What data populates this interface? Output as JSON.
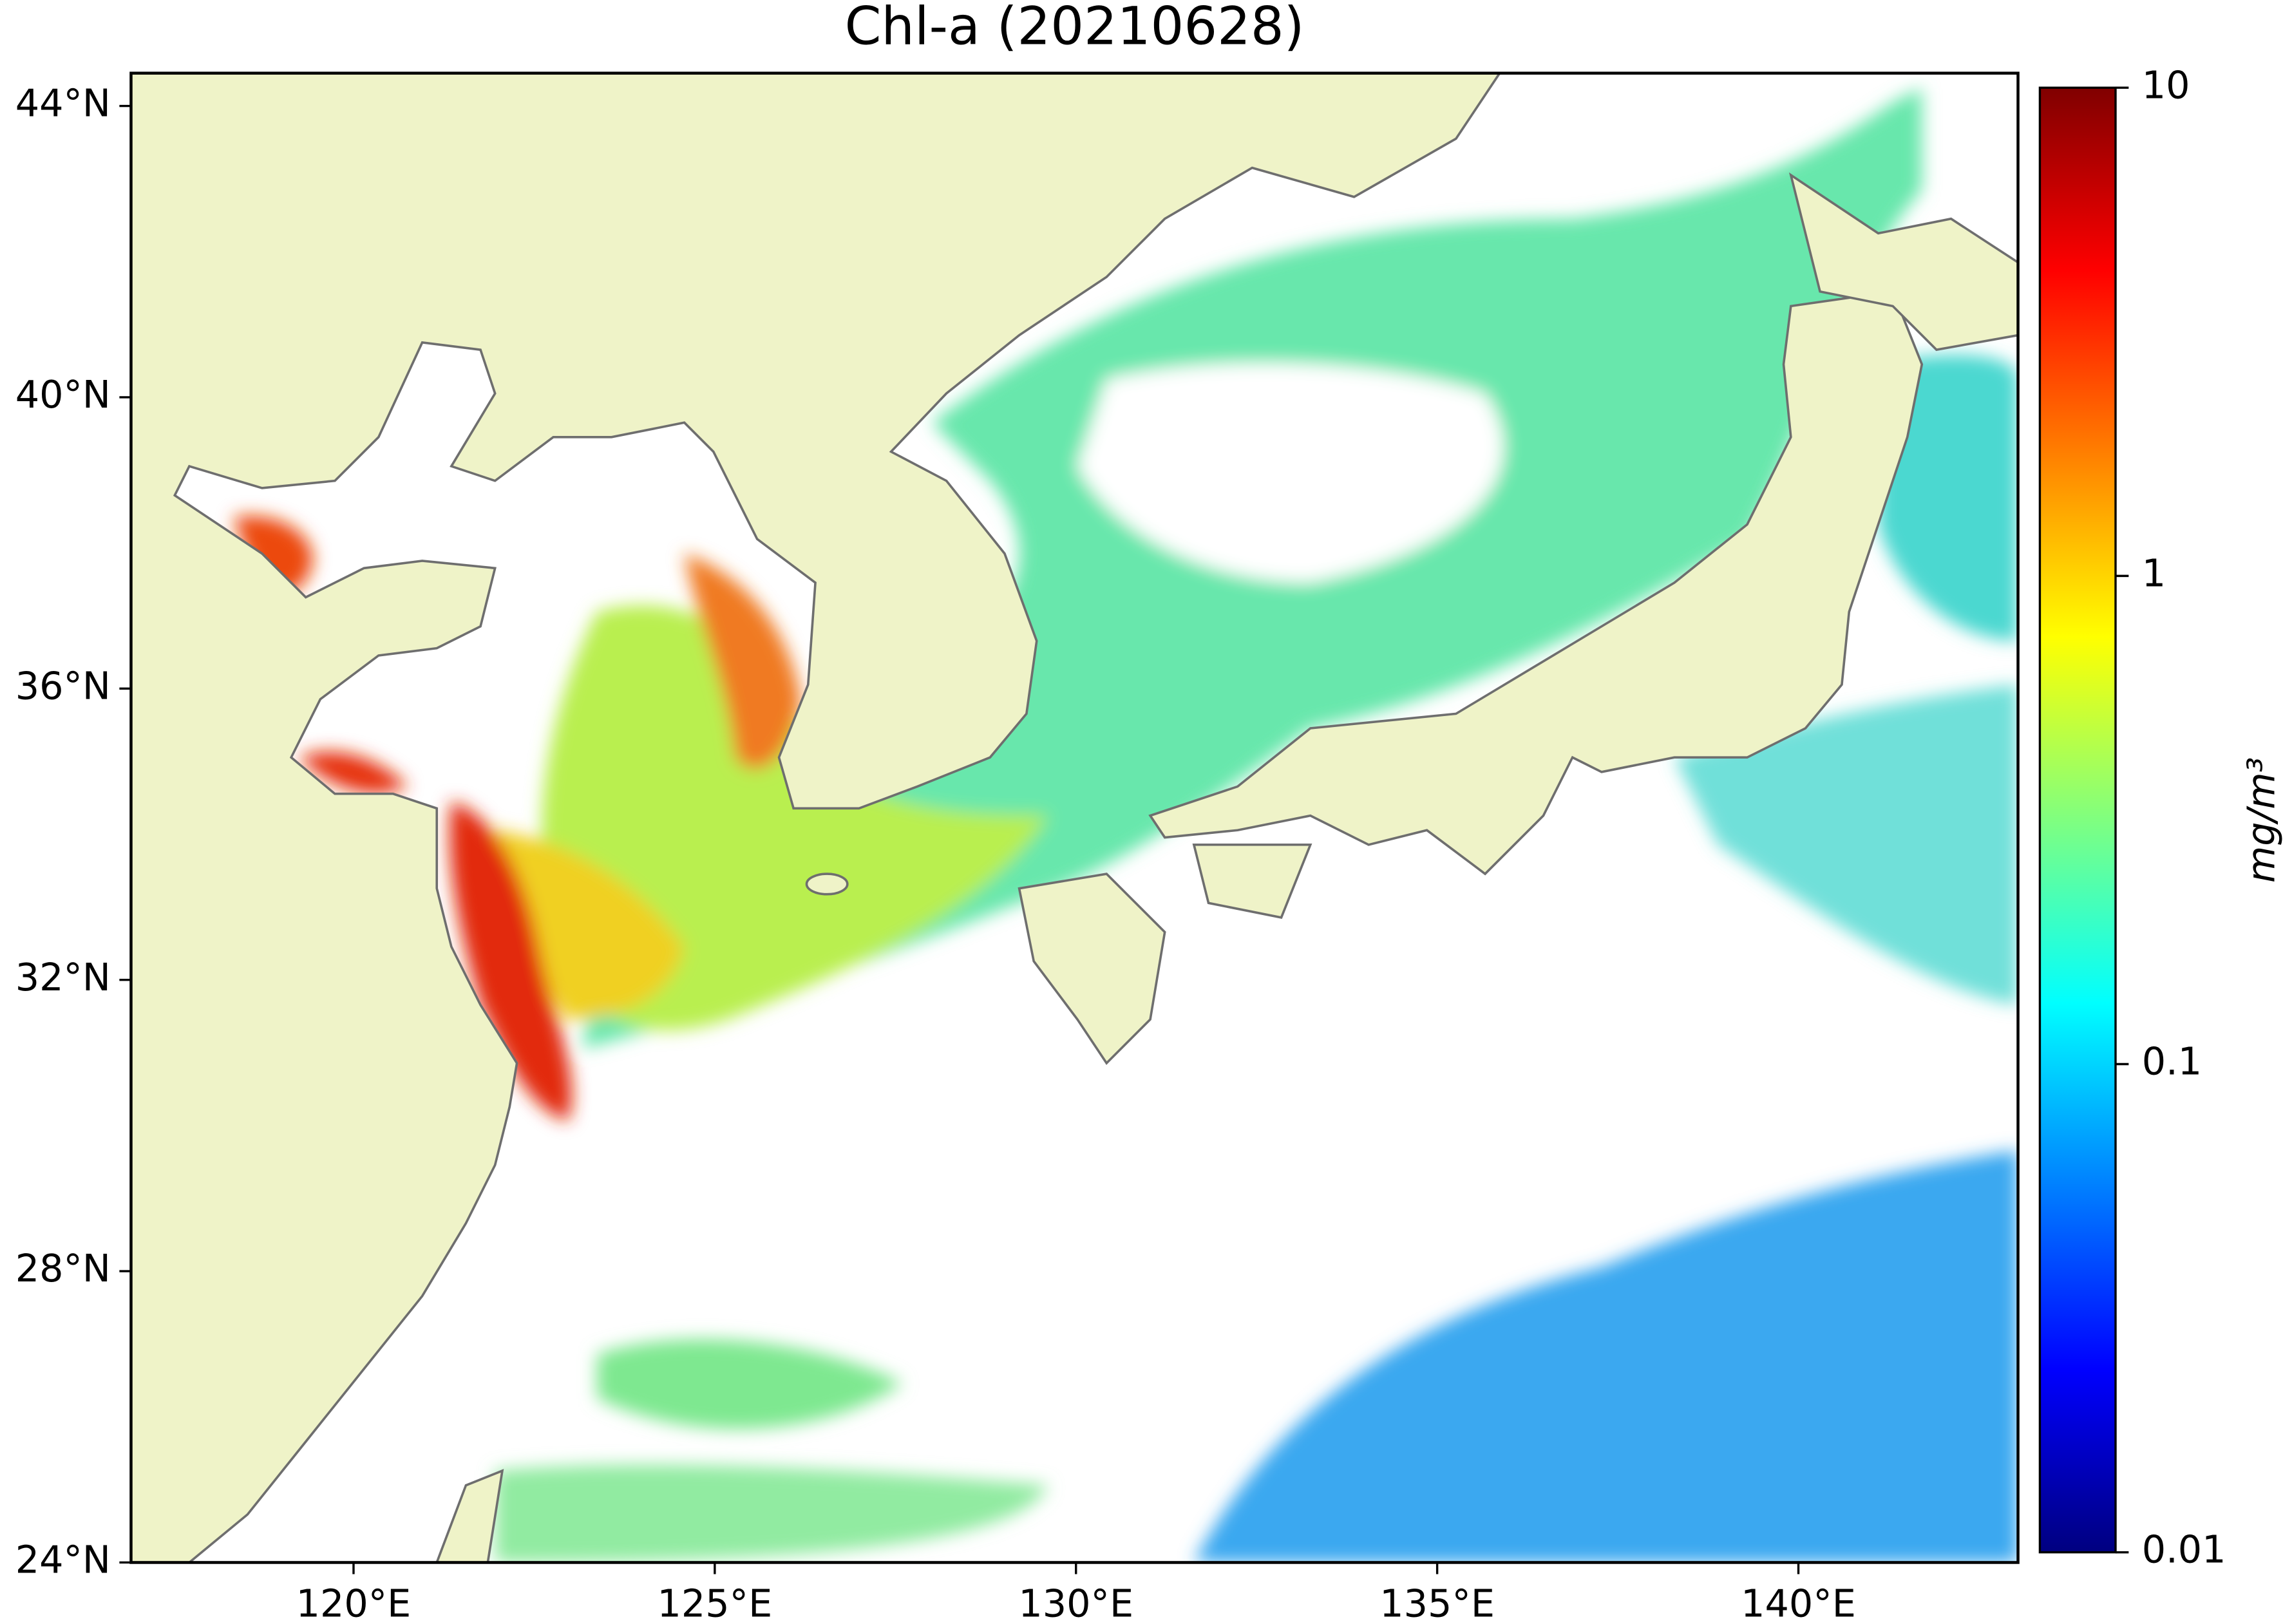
{
  "chart_data": {
    "type": "map",
    "title": "Chl-a (20210628)",
    "xlim": [
      116.92,
      143.04
    ],
    "ylim": [
      24,
      44.45
    ],
    "xticks": [
      {
        "value": 120,
        "label": "120°E"
      },
      {
        "value": 125,
        "label": "125°E"
      },
      {
        "value": 130,
        "label": "130°E"
      },
      {
        "value": 135,
        "label": "135°E"
      },
      {
        "value": 140,
        "label": "140°E"
      }
    ],
    "yticks": [
      {
        "value": 24,
        "label": "24°N"
      },
      {
        "value": 28,
        "label": "28°N"
      },
      {
        "value": 32,
        "label": "32°N"
      },
      {
        "value": 36,
        "label": "36°N"
      },
      {
        "value": 40,
        "label": "40°N"
      },
      {
        "value": 44,
        "label": "44°N"
      }
    ],
    "colorbar": {
      "label": "mg/m³",
      "log_scale": true,
      "lim": [
        0.01,
        10
      ],
      "ticks": [
        0.01,
        0.1,
        1,
        10
      ]
    }
  }
}
